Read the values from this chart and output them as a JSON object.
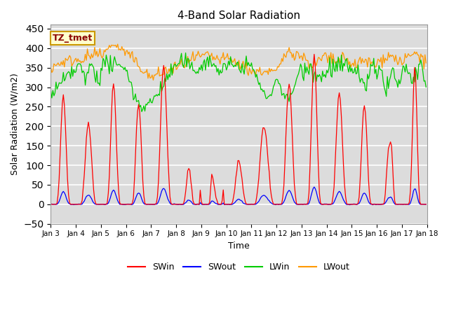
{
  "title": "4-Band Solar Radiation",
  "xlabel": "Time",
  "ylabel": "Solar Radiation (W/m2)",
  "ylim": [
    -50,
    460
  ],
  "xlim": [
    0,
    360
  ],
  "background_color": "#dcdcdc",
  "grid_color": "white",
  "annotation_text": "TZ_tmet",
  "annotation_box_color": "#ffffcc",
  "annotation_edge_color": "#cc9900",
  "colors": {
    "SWin": "#ff0000",
    "SWout": "#0000ff",
    "LWin": "#00cc00",
    "LWout": "#ff9900"
  },
  "xtick_labels": [
    "Jan 3",
    "Jan 4",
    "Jan 5",
    "Jan 6",
    "Jan 7",
    "Jan 8",
    "Jan 9",
    "Jan 10",
    "Jan 11",
    "Jan 12",
    "Jan 13",
    "Jan 14",
    "Jan 15",
    "Jan 16",
    "Jan 17",
    "Jan 18"
  ],
  "xtick_positions": [
    0,
    24,
    48,
    72,
    96,
    120,
    144,
    168,
    192,
    216,
    240,
    264,
    288,
    312,
    336,
    360
  ],
  "ytick_labels": [
    "-50",
    "0",
    "50",
    "100",
    "150",
    "200",
    "250",
    "300",
    "350",
    "400",
    "450"
  ],
  "ytick_positions": [
    -50,
    0,
    50,
    100,
    150,
    200,
    250,
    300,
    350,
    400,
    450
  ]
}
